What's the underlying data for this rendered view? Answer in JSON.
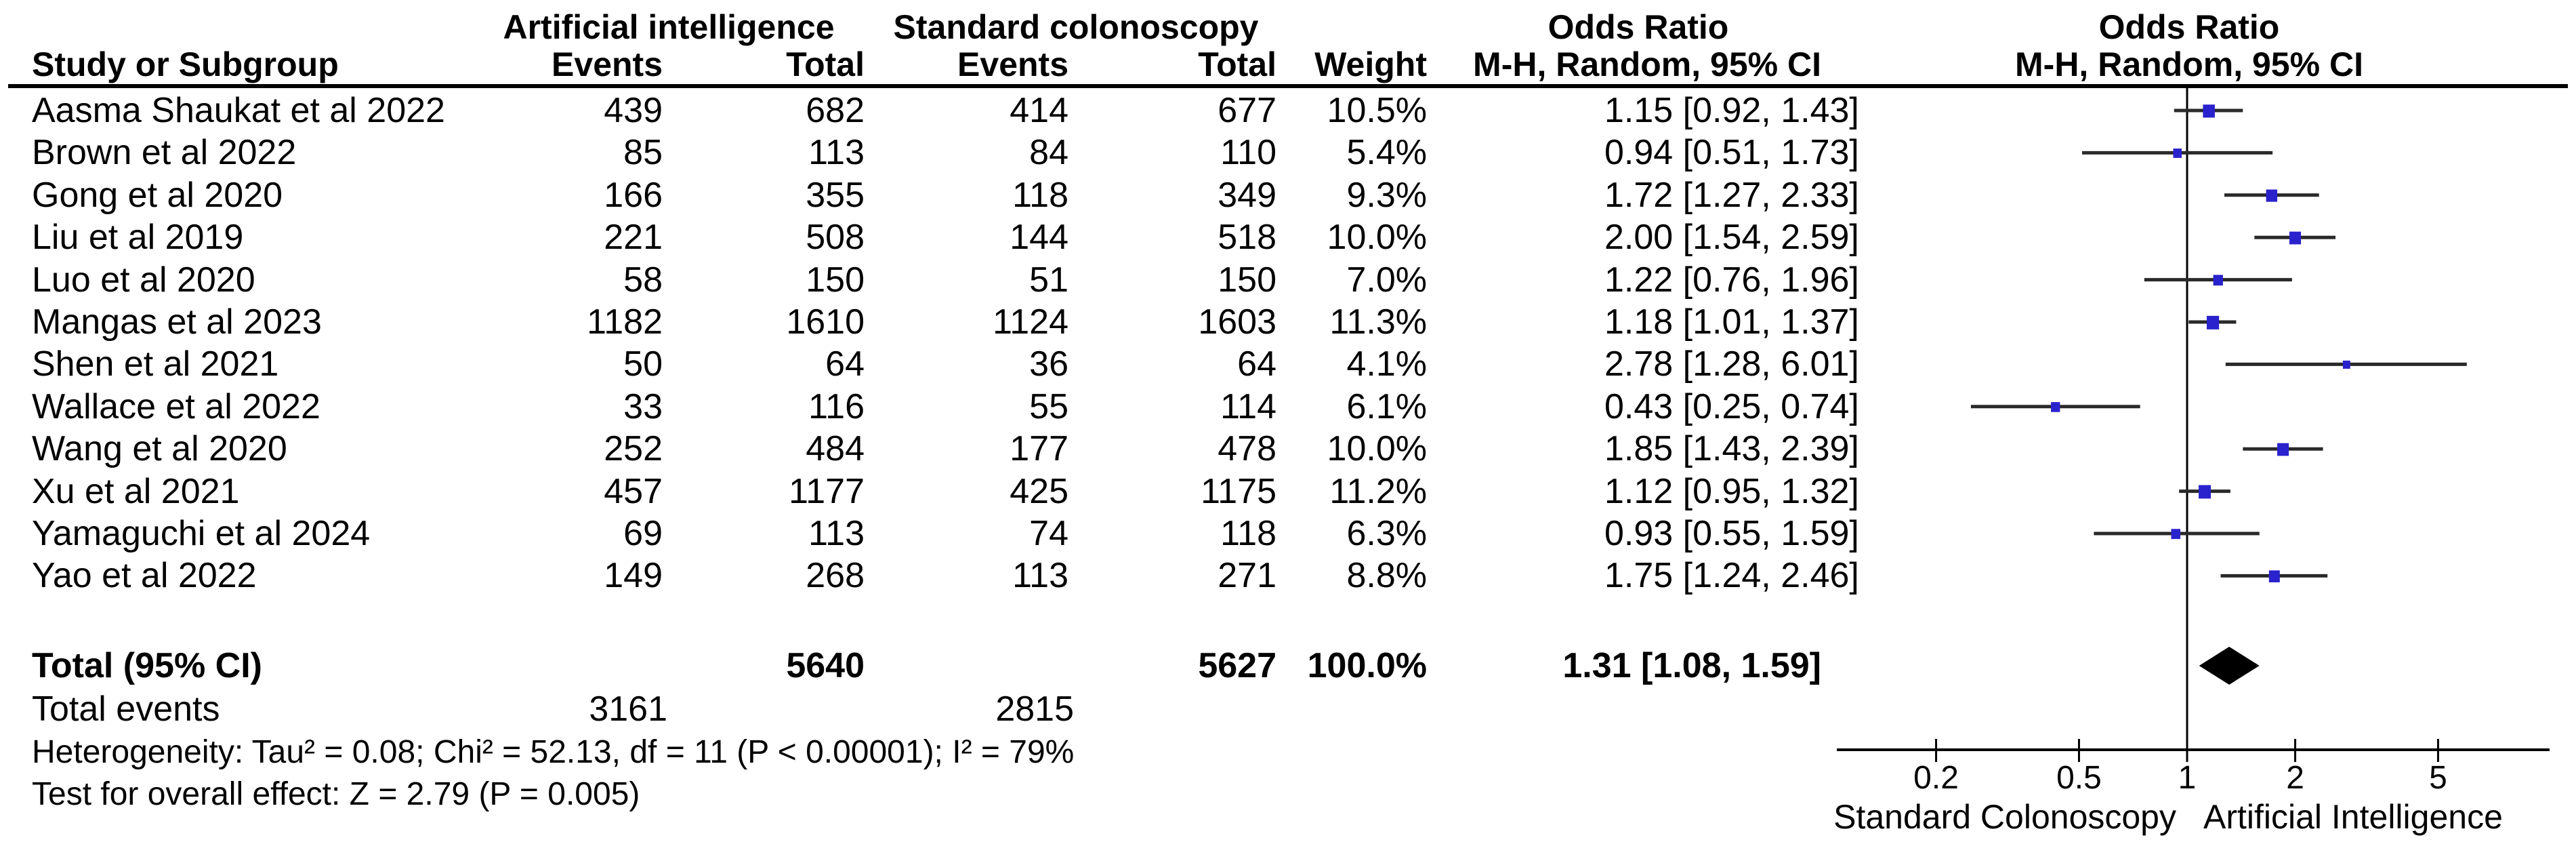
{
  "table_header": {
    "group_ai": "Artificial intelligence",
    "group_std": "Standard colonoscopy",
    "study_col": "Study or Subgroup",
    "events_col": "Events",
    "total_col": "Total",
    "weight_col": "Weight",
    "or_col_line1": "Odds Ratio",
    "or_col_line2": "M-H, Random, 95% CI",
    "plot_col_line1": "Odds Ratio",
    "plot_col_line2": "M-H, Random, 95% CI"
  },
  "chart_data": {
    "type": "forest",
    "effect_measure": "Odds Ratio, Mantel-Haenszel, Random effects, 95% CI",
    "x_scale": "log",
    "x_ticks": [
      0.2,
      0.5,
      1,
      2,
      5
    ],
    "x_range": [
      0.107,
      9.9
    ],
    "axis_left_label": "Standard Colonoscopy",
    "axis_right_label": "Artificial Intelligence",
    "studies": [
      {
        "name": "Aasma Shaukat et al 2022",
        "ai_events": 439,
        "ai_total": 682,
        "std_events": 414,
        "std_total": 677,
        "weight": "10.5%",
        "weight_pct": 10.5,
        "or": 1.15,
        "ci_low": 0.92,
        "ci_high": 1.43,
        "or_text": "1.15 [0.92, 1.43]"
      },
      {
        "name": "Brown et al 2022",
        "ai_events": 85,
        "ai_total": 113,
        "std_events": 84,
        "std_total": 110,
        "weight": "5.4%",
        "weight_pct": 5.4,
        "or": 0.94,
        "ci_low": 0.51,
        "ci_high": 1.73,
        "or_text": "0.94 [0.51, 1.73]"
      },
      {
        "name": "Gong et al 2020",
        "ai_events": 166,
        "ai_total": 355,
        "std_events": 118,
        "std_total": 349,
        "weight": "9.3%",
        "weight_pct": 9.3,
        "or": 1.72,
        "ci_low": 1.27,
        "ci_high": 2.33,
        "or_text": "1.72 [1.27, 2.33]"
      },
      {
        "name": "Liu et al 2019",
        "ai_events": 221,
        "ai_total": 508,
        "std_events": 144,
        "std_total": 518,
        "weight": "10.0%",
        "weight_pct": 10.0,
        "or": 2.0,
        "ci_low": 1.54,
        "ci_high": 2.59,
        "or_text": "2.00 [1.54, 2.59]"
      },
      {
        "name": "Luo et al 2020",
        "ai_events": 58,
        "ai_total": 150,
        "std_events": 51,
        "std_total": 150,
        "weight": "7.0%",
        "weight_pct": 7.0,
        "or": 1.22,
        "ci_low": 0.76,
        "ci_high": 1.96,
        "or_text": "1.22 [0.76, 1.96]"
      },
      {
        "name": "Mangas et al 2023",
        "ai_events": 1182,
        "ai_total": 1610,
        "std_events": 1124,
        "std_total": 1603,
        "weight": "11.3%",
        "weight_pct": 11.3,
        "or": 1.18,
        "ci_low": 1.01,
        "ci_high": 1.37,
        "or_text": "1.18 [1.01, 1.37]"
      },
      {
        "name": "Shen et al 2021",
        "ai_events": 50,
        "ai_total": 64,
        "std_events": 36,
        "std_total": 64,
        "weight": "4.1%",
        "weight_pct": 4.1,
        "or": 2.78,
        "ci_low": 1.28,
        "ci_high": 6.01,
        "or_text": "2.78 [1.28, 6.01]"
      },
      {
        "name": "Wallace et al 2022",
        "ai_events": 33,
        "ai_total": 116,
        "std_events": 55,
        "std_total": 114,
        "weight": "6.1%",
        "weight_pct": 6.1,
        "or": 0.43,
        "ci_low": 0.25,
        "ci_high": 0.74,
        "or_text": "0.43 [0.25, 0.74]"
      },
      {
        "name": "Wang et al 2020",
        "ai_events": 252,
        "ai_total": 484,
        "std_events": 177,
        "std_total": 478,
        "weight": "10.0%",
        "weight_pct": 10.0,
        "or": 1.85,
        "ci_low": 1.43,
        "ci_high": 2.39,
        "or_text": "1.85 [1.43, 2.39]"
      },
      {
        "name": "Xu et al 2021",
        "ai_events": 457,
        "ai_total": 1177,
        "std_events": 425,
        "std_total": 1175,
        "weight": "11.2%",
        "weight_pct": 11.2,
        "or": 1.12,
        "ci_low": 0.95,
        "ci_high": 1.32,
        "or_text": "1.12 [0.95, 1.32]"
      },
      {
        "name": "Yamaguchi et al 2024",
        "ai_events": 69,
        "ai_total": 113,
        "std_events": 74,
        "std_total": 118,
        "weight": "6.3%",
        "weight_pct": 6.3,
        "or": 0.93,
        "ci_low": 0.55,
        "ci_high": 1.59,
        "or_text": "0.93 [0.55, 1.59]"
      },
      {
        "name": "Yao et al 2022",
        "ai_events": 149,
        "ai_total": 268,
        "std_events": 113,
        "std_total": 271,
        "weight": "8.8%",
        "weight_pct": 8.8,
        "or": 1.75,
        "ci_low": 1.24,
        "ci_high": 2.46,
        "or_text": "1.75 [1.24, 2.46]"
      }
    ],
    "total": {
      "label": "Total (95% CI)",
      "ai_total": "5640",
      "std_total": "5627",
      "weight": "100.0%",
      "or": 1.31,
      "ci_low": 1.08,
      "ci_high": 1.59,
      "or_text": "1.31 [1.08, 1.59]"
    },
    "total_events": {
      "label": "Total events",
      "ai_events": "3161",
      "std_events": "2815"
    },
    "heterogeneity": "Heterogeneity: Tau² = 0.08; Chi² = 52.13, df = 11 (P < 0.00001); I² = 79%",
    "overall_effect": "Test for overall effect: Z = 2.79 (P = 0.005)"
  },
  "colors": {
    "marker_square": "#2a22cc",
    "ci_line": "#2a2a2a",
    "diamond": "#000000",
    "axis": "#000000",
    "text": "#000000"
  }
}
